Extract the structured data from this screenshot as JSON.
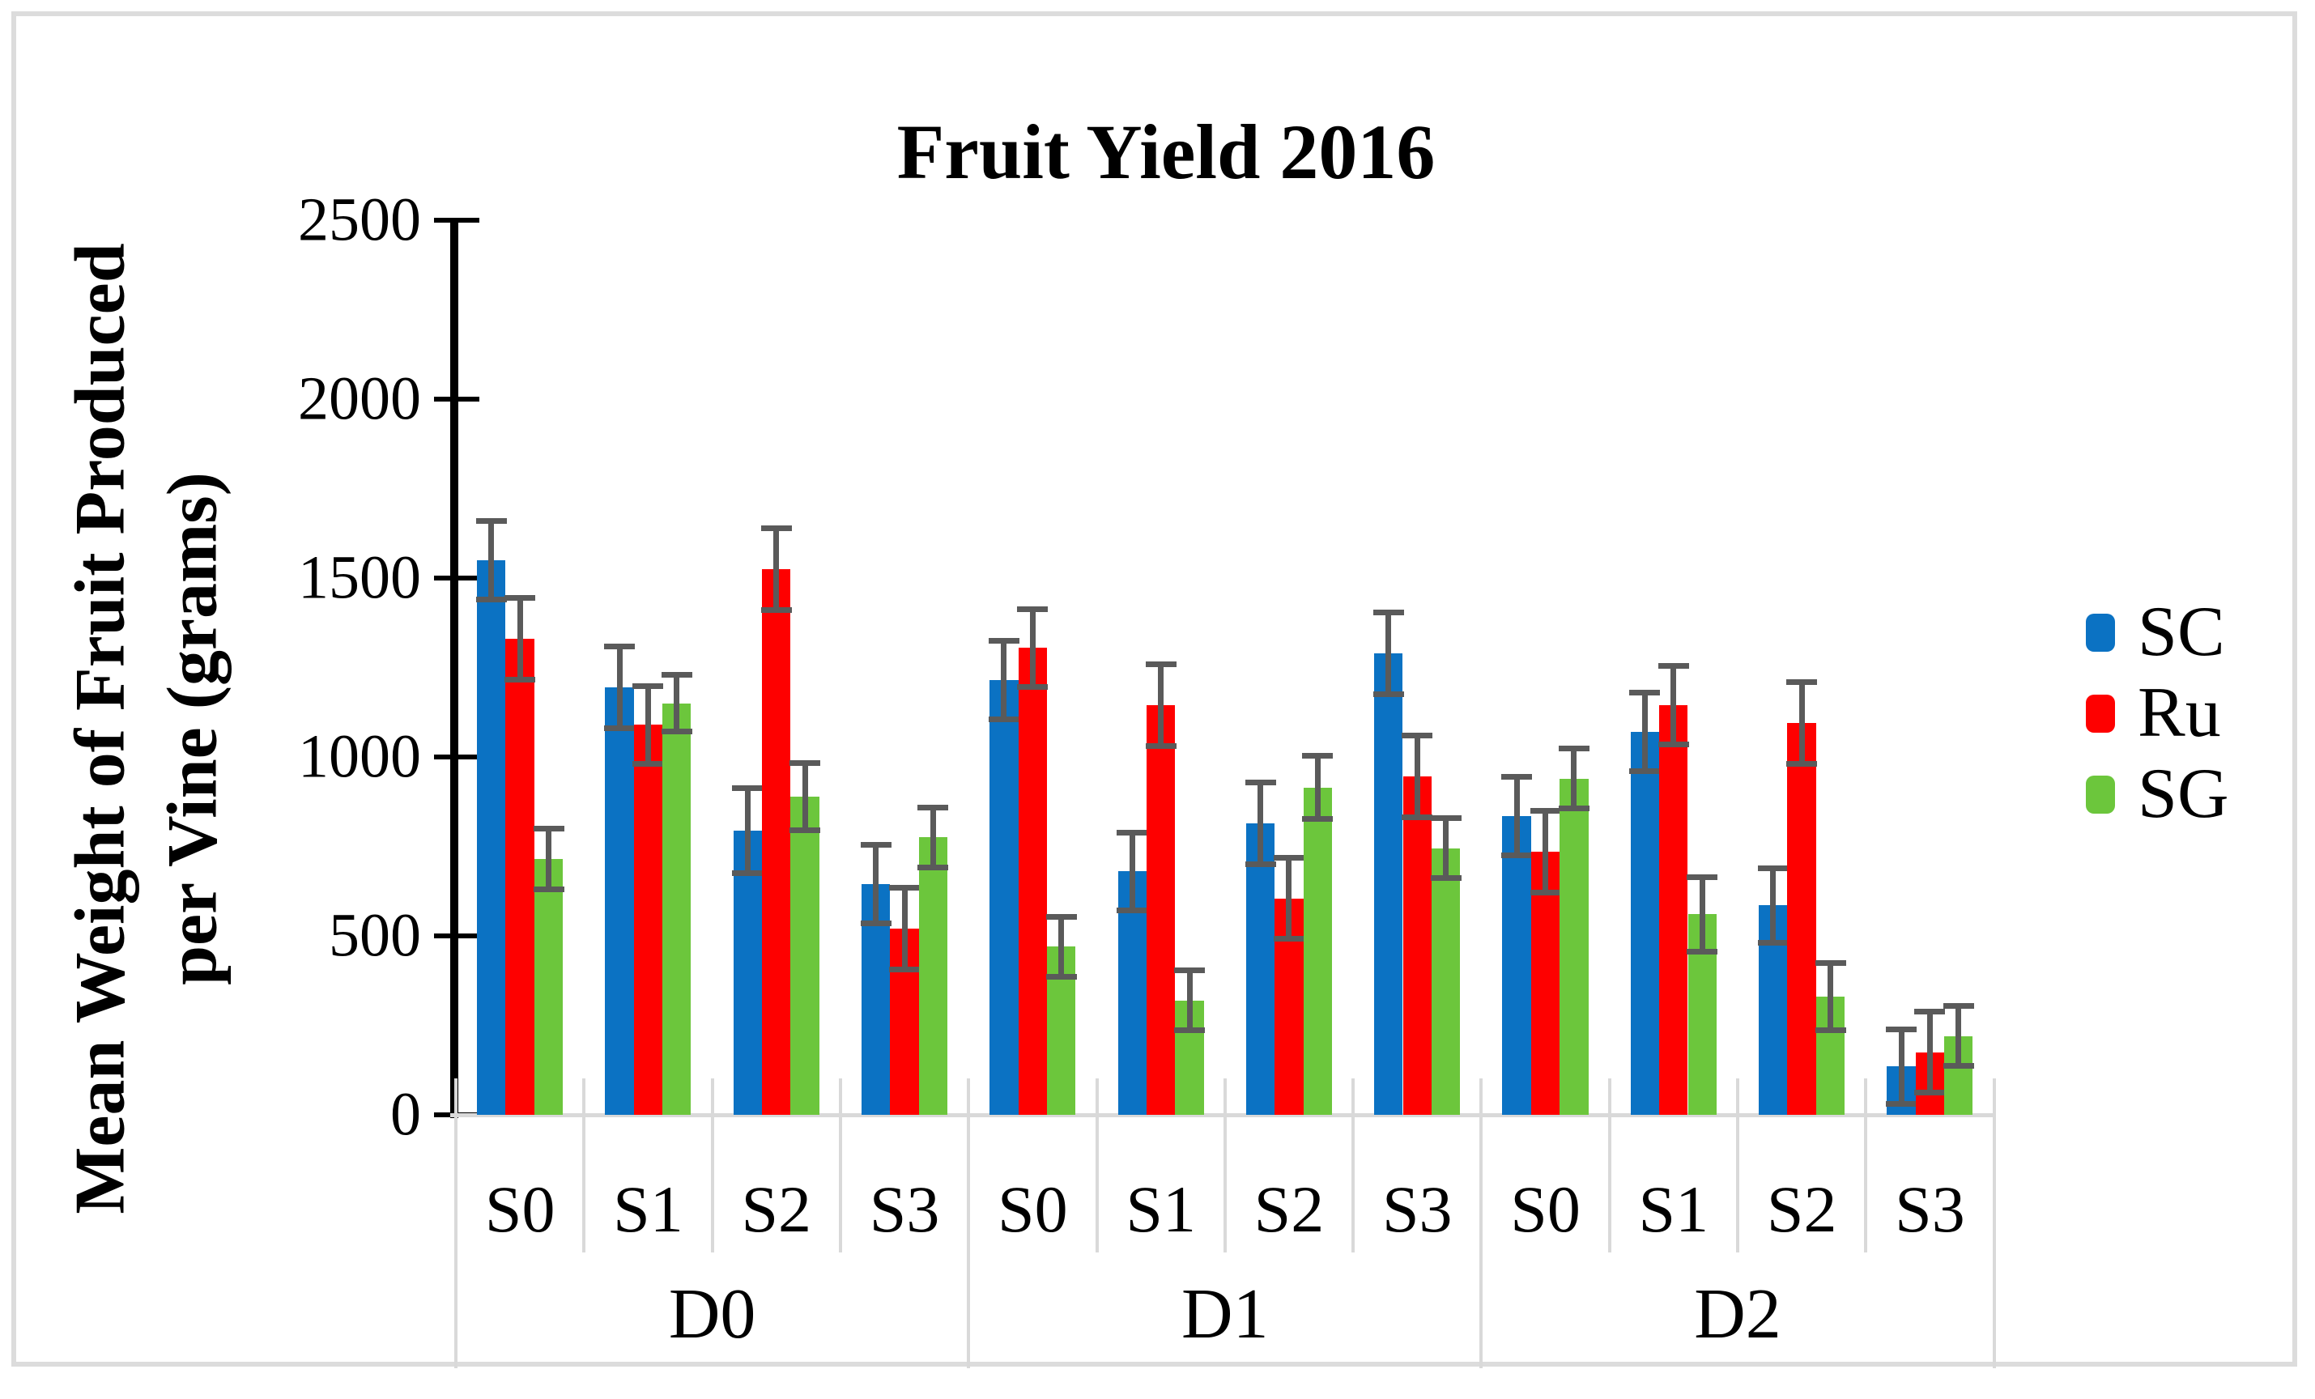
{
  "figure": {
    "title": "Fruit Yield 2016",
    "y_axis_label_line1": "Mean Weight of Fruit Produced",
    "y_axis_label_line2": "per Vine (grams)"
  },
  "colors": {
    "sc_blue": "#0b72c3",
    "ru_red": "#fe0000",
    "sg_green": "#6cc63c",
    "error_bar_gray": "#5a5a5a",
    "axis_black": "#000000",
    "grid_light_gray": "#d9d9d9",
    "frame_gray": "#dcdcdc"
  },
  "chart_data": {
    "type": "bar",
    "title": "Fruit Yield 2016",
    "ylabel": "Mean Weight of Fruit Produced per Vine (grams)",
    "xlabel": "",
    "ylim": [
      0,
      2500
    ],
    "ytick_interval": 500,
    "yticks": [
      0,
      500,
      1000,
      1500,
      2000,
      2500
    ],
    "grid": false,
    "legend_position": "right",
    "groups": [
      "D0",
      "D1",
      "D2"
    ],
    "subgroups": [
      "S0",
      "S1",
      "S2",
      "S3"
    ],
    "series": [
      {
        "name": "SC",
        "color": "#0b72c3",
        "values": {
          "D0": [
            1550,
            1195,
            795,
            645
          ],
          "D1": [
            1215,
            680,
            815,
            1290
          ],
          "D2": [
            835,
            1070,
            585,
            135
          ]
        },
        "errors": {
          "D0": [
            110,
            115,
            120,
            110
          ],
          "D1": [
            110,
            110,
            115,
            115
          ],
          "D2": [
            110,
            110,
            105,
            105
          ]
        }
      },
      {
        "name": "Ru",
        "color": "#fe0000",
        "values": {
          "D0": [
            1330,
            1090,
            1525,
            520
          ],
          "D1": [
            1305,
            1145,
            605,
            945
          ],
          "D2": [
            735,
            1145,
            1095,
            175
          ]
        },
        "errors": {
          "D0": [
            115,
            110,
            115,
            115
          ],
          "D1": [
            110,
            115,
            115,
            115
          ],
          "D2": [
            115,
            110,
            115,
            115
          ]
        }
      },
      {
        "name": "SG",
        "color": "#6cc63c",
        "values": {
          "D0": [
            715,
            1150,
            890,
            775
          ],
          "D1": [
            470,
            320,
            915,
            745
          ],
          "D2": [
            940,
            560,
            330,
            220
          ]
        },
        "errors": {
          "D0": [
            85,
            80,
            95,
            85
          ],
          "D1": [
            85,
            85,
            90,
            85
          ],
          "D2": [
            85,
            105,
            95,
            85
          ]
        }
      }
    ]
  }
}
